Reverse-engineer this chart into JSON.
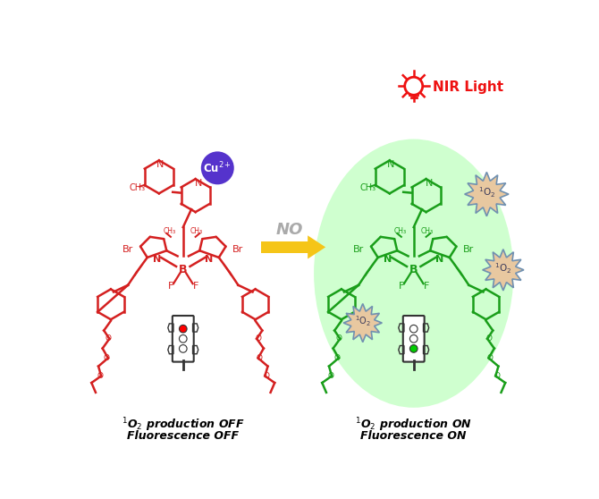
{
  "left_label_line1": "$^1$O$_2$ production OFF",
  "left_label_line2": "Fluorescence OFF",
  "right_label_line1": "$^1$O$_2$ production ON",
  "right_label_line2": "Fluorescence ON",
  "no_label": "NO",
  "nir_label": "NIR Light",
  "arrow_color": "#F5C518",
  "left_molecule_color": "#D42020",
  "right_molecule_color": "#1A9E1A",
  "cu_circle_color": "#5533CC",
  "cu_text": "Cu$^{2+}$",
  "glow_color": "#BBFFBB",
  "singlet_o2_color": "#E8C8A0",
  "singlet_o2_edge": "#7090B0",
  "nir_color": "#EE1111",
  "label_color": "#000000",
  "background_color": "#FFFFFF",
  "traffic_edge": "#333333",
  "no_color": "#AAAAAA"
}
